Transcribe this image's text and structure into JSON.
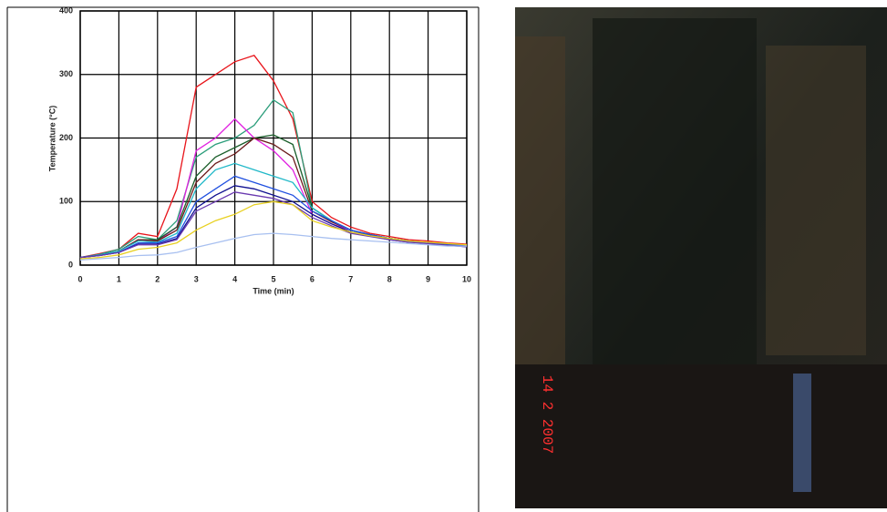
{
  "chart_data": {
    "type": "line",
    "x_label": "Time (min)",
    "y_label": "Temperature (°C)",
    "x": [
      0,
      0.5,
      1,
      1.5,
      2,
      2.5,
      3,
      3.5,
      4,
      4.5,
      5,
      5.5,
      6,
      6.5,
      7,
      7.5,
      8,
      8.5,
      9,
      9.5,
      10
    ],
    "xlim": [
      0,
      10
    ],
    "xticks": [
      0,
      1,
      2,
      3,
      4,
      5,
      6,
      7,
      8,
      9,
      10
    ],
    "ylim": [
      0,
      400
    ],
    "yticks": [
      0,
      100,
      200,
      300,
      400
    ],
    "grid": true,
    "series": [
      {
        "color": "#e8141a",
        "values": [
          12,
          18,
          25,
          50,
          45,
          120,
          280,
          300,
          320,
          330,
          290,
          230,
          100,
          75,
          60,
          50,
          45,
          40,
          38,
          35,
          33
        ]
      },
      {
        "color": "#2a9d7a",
        "values": [
          12,
          17,
          25,
          45,
          40,
          70,
          170,
          190,
          200,
          220,
          260,
          240,
          90,
          70,
          55,
          48,
          42,
          38,
          35,
          33,
          31
        ]
      },
      {
        "color": "#e020e0",
        "values": [
          12,
          16,
          22,
          40,
          38,
          60,
          180,
          200,
          230,
          200,
          180,
          150,
          80,
          65,
          55,
          48,
          42,
          38,
          35,
          33,
          31
        ]
      },
      {
        "color": "#1a5e2a",
        "values": [
          12,
          16,
          22,
          40,
          40,
          60,
          140,
          170,
          185,
          200,
          205,
          190,
          90,
          70,
          55,
          48,
          42,
          38,
          35,
          32,
          30
        ]
      },
      {
        "color": "#6a1a1a",
        "values": [
          12,
          16,
          22,
          40,
          38,
          55,
          130,
          160,
          175,
          200,
          190,
          170,
          85,
          68,
          55,
          47,
          42,
          38,
          35,
          32,
          30
        ]
      },
      {
        "color": "#20b8c8",
        "values": [
          12,
          16,
          22,
          38,
          36,
          50,
          120,
          150,
          160,
          150,
          140,
          130,
          90,
          70,
          55,
          48,
          42,
          38,
          35,
          32,
          30
        ]
      },
      {
        "color": "#2050e0",
        "values": [
          12,
          15,
          20,
          35,
          35,
          45,
          100,
          120,
          140,
          130,
          120,
          110,
          85,
          70,
          55,
          48,
          42,
          38,
          35,
          32,
          30
        ]
      },
      {
        "color": "#101090",
        "values": [
          12,
          15,
          20,
          33,
          33,
          42,
          90,
          110,
          125,
          120,
          110,
          100,
          80,
          65,
          52,
          46,
          40,
          36,
          34,
          31,
          29
        ]
      },
      {
        "color": "#6a3ab0",
        "values": [
          12,
          15,
          20,
          32,
          32,
          40,
          85,
          100,
          115,
          110,
          105,
          95,
          75,
          62,
          50,
          45,
          40,
          36,
          34,
          31,
          29
        ]
      },
      {
        "color": "#e8d020",
        "values": [
          10,
          12,
          16,
          25,
          28,
          35,
          55,
          70,
          80,
          95,
          100,
          95,
          70,
          60,
          52,
          46,
          42,
          38,
          36,
          34,
          32
        ]
      },
      {
        "color": "#a8c0f0",
        "values": [
          8,
          10,
          12,
          15,
          16,
          20,
          28,
          35,
          42,
          48,
          50,
          48,
          45,
          42,
          40,
          38,
          36,
          34,
          32,
          30,
          30
        ]
      }
    ]
  },
  "photo": {
    "timestamp": "14 2 2007"
  }
}
